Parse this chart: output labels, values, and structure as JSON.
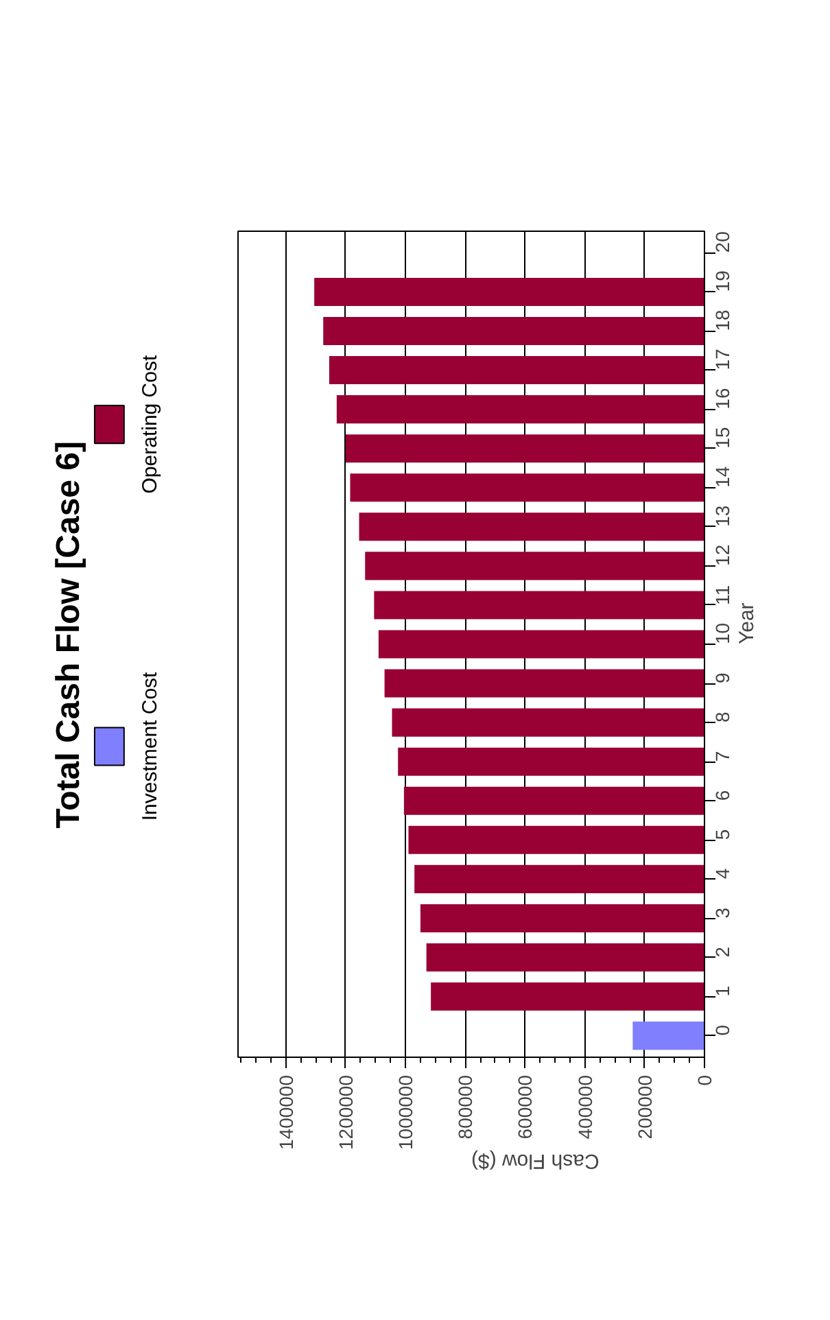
{
  "chart_data": {
    "type": "bar",
    "title": "Total Cash Flow [Case 6]",
    "orientation": "horizontal",
    "categories": [
      "20",
      "19",
      "18",
      "17",
      "16",
      "15",
      "14",
      "13",
      "12",
      "11",
      "10",
      "9",
      "8",
      "7",
      "6",
      "5",
      "4",
      "3",
      "2",
      "1",
      "0"
    ],
    "series": [
      {
        "name": "Investment Cost",
        "color": "#8080ff",
        "values": [
          null,
          null,
          null,
          null,
          null,
          null,
          null,
          null,
          null,
          null,
          null,
          null,
          null,
          null,
          null,
          null,
          null,
          null,
          null,
          null,
          240000
        ]
      },
      {
        "name": "Operating Cost",
        "color": "#990033",
        "values": [
          null,
          1305000,
          1275000,
          1255000,
          1230000,
          1200000,
          1185000,
          1155000,
          1135000,
          1105000,
          1090000,
          1070000,
          1045000,
          1025000,
          1005000,
          990000,
          970000,
          950000,
          930000,
          915000,
          null
        ]
      }
    ],
    "xlim": [
      1560000,
      0
    ],
    "xticks": [
      0,
      200000,
      400000,
      600000,
      800000,
      1000000,
      1200000,
      1400000
    ],
    "xlabel": "Cash Flow ($)",
    "ylabel": "Year",
    "grid": "x",
    "legend": "left"
  }
}
